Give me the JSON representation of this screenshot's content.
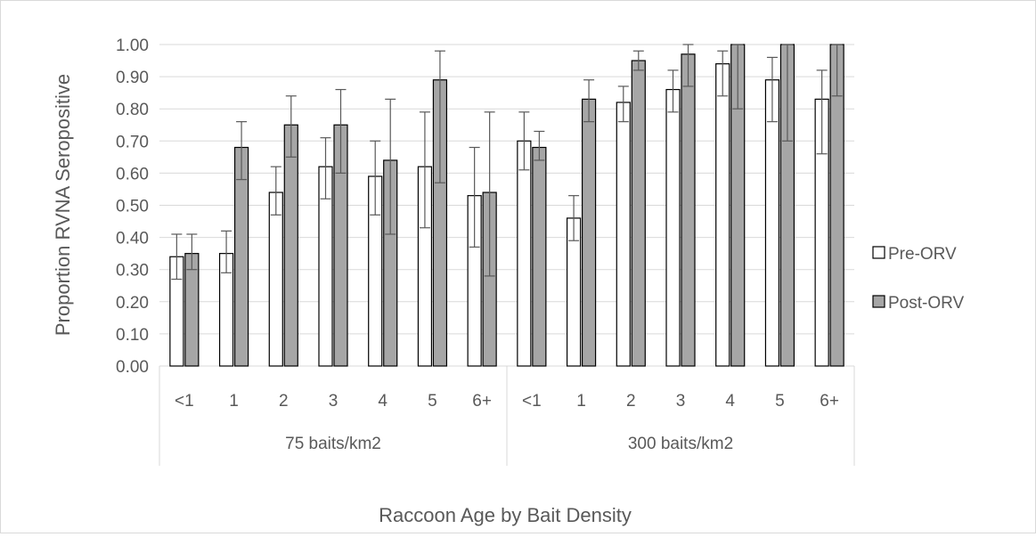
{
  "chart_data": {
    "type": "bar",
    "ylabel": "Proportion RVNA Seropositive",
    "xlabel": "Raccoon Age by Bait Density",
    "ylim": [
      0,
      1.0
    ],
    "y_ticks": [
      "0.00",
      "0.10",
      "0.20",
      "0.30",
      "0.40",
      "0.50",
      "0.60",
      "0.70",
      "0.80",
      "0.90",
      "1.00"
    ],
    "grid": true,
    "legend_position": "right",
    "groups": [
      {
        "label": "75 baits/km2",
        "categories": [
          "<1",
          "1",
          "2",
          "3",
          "4",
          "5",
          "6+"
        ]
      },
      {
        "label": "300 baits/km2",
        "categories": [
          "<1",
          "1",
          "2",
          "3",
          "4",
          "5",
          "6+"
        ]
      }
    ],
    "series": [
      {
        "name": "Pre-ORV",
        "color": "#ffffff",
        "values": [
          0.34,
          0.35,
          0.54,
          0.62,
          0.59,
          0.62,
          0.53,
          0.7,
          0.46,
          0.82,
          0.86,
          0.94,
          0.89,
          0.83
        ],
        "err_upper": [
          0.41,
          0.42,
          0.62,
          0.71,
          0.7,
          0.79,
          0.68,
          0.79,
          0.53,
          0.87,
          0.92,
          0.98,
          0.96,
          0.92
        ],
        "err_lower": [
          0.27,
          0.29,
          0.47,
          0.52,
          0.47,
          0.43,
          0.37,
          0.61,
          0.39,
          0.76,
          0.79,
          0.84,
          0.76,
          0.66
        ]
      },
      {
        "name": "Post-ORV",
        "color": "#a6a6a6",
        "values": [
          0.35,
          0.68,
          0.75,
          0.75,
          0.64,
          0.89,
          0.54,
          0.68,
          0.83,
          0.95,
          0.97,
          1.0,
          1.0,
          1.0
        ],
        "err_upper": [
          0.41,
          0.76,
          0.84,
          0.86,
          0.83,
          0.98,
          0.79,
          0.73,
          0.89,
          0.98,
          1.0,
          1.0,
          1.0,
          1.0
        ],
        "err_lower": [
          0.3,
          0.58,
          0.65,
          0.6,
          0.41,
          0.57,
          0.28,
          0.64,
          0.76,
          0.92,
          0.87,
          0.8,
          0.7,
          0.84
        ]
      }
    ]
  }
}
